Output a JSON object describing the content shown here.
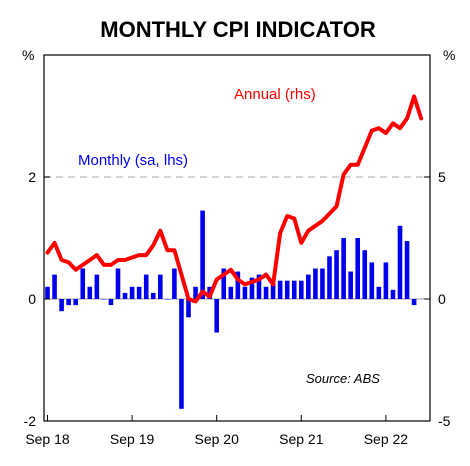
{
  "chart_data": {
    "type": "bar+line",
    "title": "MONTHLY CPI INDICATOR",
    "left_unit": "%",
    "right_unit": "%",
    "left_axis": {
      "ylim": [
        -2,
        4
      ],
      "ticks": [
        "-2",
        "0",
        "2"
      ],
      "tick_values": [
        -2,
        0,
        2
      ]
    },
    "right_axis": {
      "ylim": [
        -5,
        10
      ],
      "ticks": [
        "-5",
        "0",
        "5"
      ],
      "tick_values": [
        -5,
        0,
        5
      ]
    },
    "x_ticks": [
      "Sep 18",
      "Sep 19",
      "Sep 20",
      "Sep 21",
      "Sep 22"
    ],
    "x_start_label": "Sep 18",
    "gridline_left_value": 2,
    "series": [
      {
        "name": "Monthly (sa, lhs)",
        "type": "bar",
        "axis": "left",
        "color": "#0000ee",
        "values": [
          0.2,
          0.4,
          -0.2,
          -0.1,
          -0.1,
          0.5,
          0.2,
          0.4,
          0.0,
          -0.1,
          0.5,
          0.1,
          0.2,
          0.2,
          0.4,
          0.1,
          0.4,
          0.0,
          0.5,
          -1.8,
          -0.3,
          0.2,
          1.45,
          0.2,
          -0.55,
          0.5,
          0.2,
          0.45,
          0.2,
          0.35,
          0.4,
          0.2,
          0.25,
          0.3,
          0.3,
          0.3,
          0.3,
          0.4,
          0.5,
          0.5,
          0.7,
          0.8,
          1.0,
          0.45,
          1.0,
          0.8,
          0.6,
          0.2,
          0.6,
          0.15,
          1.2,
          0.95,
          -0.1
        ]
      },
      {
        "name": "Annual (rhs)",
        "type": "line",
        "axis": "right",
        "color": "#ff0000",
        "values": [
          1.9,
          2.3,
          1.6,
          1.5,
          1.2,
          1.4,
          1.6,
          1.8,
          1.4,
          1.4,
          1.6,
          1.6,
          1.7,
          1.8,
          1.8,
          2.2,
          2.8,
          2.0,
          2.0,
          1.0,
          0.0,
          -0.1,
          0.3,
          0.1,
          0.8,
          1.0,
          1.2,
          0.8,
          0.6,
          0.7,
          0.8,
          1.0,
          0.6,
          2.7,
          3.4,
          3.3,
          2.3,
          2.8,
          3.0,
          3.2,
          3.5,
          3.8,
          5.1,
          5.5,
          5.5,
          6.2,
          6.9,
          7.0,
          6.8,
          7.2,
          7.0,
          7.4,
          8.3,
          7.4
        ]
      }
    ],
    "annotations": {
      "annual_label": "Annual (rhs)",
      "monthly_label": "Monthly (sa, lhs)",
      "source": "Source: ABS"
    }
  }
}
